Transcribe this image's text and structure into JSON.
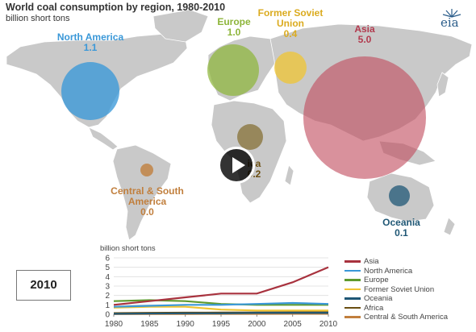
{
  "header": {
    "title": "World coal consumption by region, 1980-2010",
    "subtitle": "billion short tons",
    "logo_text": "eia"
  },
  "map": {
    "regions": [
      {
        "name": "North America",
        "value": "1.1",
        "color": "#3a98d8"
      },
      {
        "name": "Europe",
        "value": "1.0",
        "color": "#8db53a"
      },
      {
        "name": "Former Soviet Union",
        "value": "0.4",
        "color": "#efc433"
      },
      {
        "name": "Asia",
        "value": "5.0",
        "color": "#c24d5f"
      },
      {
        "name": "Africa",
        "value": "0.2",
        "color": "#7d6420"
      },
      {
        "name": "Central & South America",
        "value": "0.0",
        "color": "#c17f3d"
      },
      {
        "name": "Oceania",
        "value": "0.1",
        "color": "#1f5775"
      }
    ],
    "label_lines": {
      "north_america": "North America",
      "europe": "Europe",
      "fsu_1": "Former Soviet",
      "fsu_2": "Union",
      "asia": "Asia",
      "africa_visible": "ica",
      "csa_1": "Central & South",
      "csa_2": "America",
      "oceania": "Oceania"
    }
  },
  "year_selector": {
    "value": "2010"
  },
  "player": {
    "icon": "play-icon"
  },
  "chart_data": {
    "type": "line",
    "ylabel": "billion short tons",
    "xlim": [
      1980,
      2010
    ],
    "ylim": [
      0,
      6
    ],
    "x_ticks": [
      1980,
      1985,
      1990,
      1995,
      2000,
      2005,
      2010
    ],
    "y_ticks": [
      0,
      1,
      2,
      3,
      4,
      5,
      6
    ],
    "x": [
      1980,
      1985,
      1990,
      1995,
      2000,
      2005,
      2010
    ],
    "series": [
      {
        "name": "Asia",
        "color": "#a8323e",
        "values": [
          1.0,
          1.4,
          1.8,
          2.2,
          2.2,
          3.4,
          5.0
        ]
      },
      {
        "name": "North America",
        "color": "#3a98d8",
        "values": [
          0.8,
          0.9,
          1.0,
          1.0,
          1.1,
          1.2,
          1.1
        ]
      },
      {
        "name": "Europe",
        "color": "#5f9a2e",
        "values": [
          1.4,
          1.5,
          1.4,
          1.1,
          1.0,
          1.0,
          1.0
        ]
      },
      {
        "name": "Former Soviet Union",
        "color": "#efc433",
        "values": [
          0.7,
          0.8,
          0.8,
          0.5,
          0.4,
          0.4,
          0.4
        ]
      },
      {
        "name": "Oceania",
        "color": "#1f5775",
        "values": [
          0.05,
          0.08,
          0.1,
          0.1,
          0.15,
          0.15,
          0.15
        ]
      },
      {
        "name": "Africa",
        "color": "#6a4e12",
        "values": [
          0.12,
          0.15,
          0.17,
          0.18,
          0.19,
          0.21,
          0.22
        ]
      },
      {
        "name": "Central & South America",
        "color": "#c17f3d",
        "values": [
          0.02,
          0.03,
          0.03,
          0.04,
          0.04,
          0.05,
          0.05
        ]
      }
    ]
  }
}
